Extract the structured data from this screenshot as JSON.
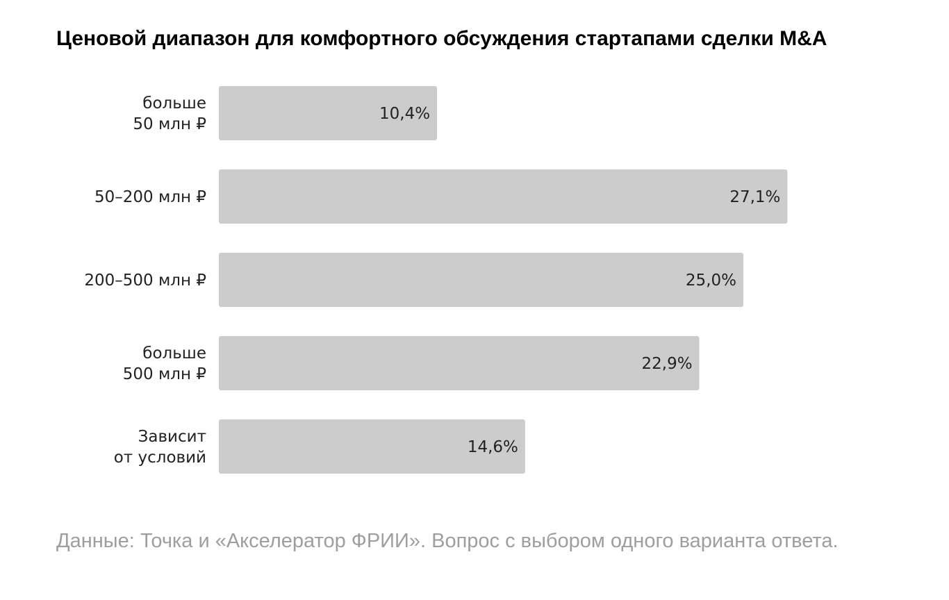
{
  "chart_data": {
    "type": "bar",
    "orientation": "horizontal",
    "title": "Ценовой диапазон для комфортного обсуждения стартапами сделки M&A",
    "categories": [
      [
        "больше",
        "50 млн ₽"
      ],
      [
        "50–200 млн ₽"
      ],
      [
        "200–500 млн ₽"
      ],
      [
        "больше",
        "500 млн ₽"
      ],
      [
        "Зависит",
        "от условий"
      ]
    ],
    "values": [
      10.4,
      27.1,
      25.0,
      22.9,
      14.6
    ],
    "value_labels": [
      "10,4%",
      "27,1%",
      "25,0%",
      "22,9%",
      "14,6%"
    ],
    "xlabel": "",
    "ylabel": "",
    "grid": false,
    "legend": "none",
    "bar_color": "#cccccc"
  },
  "source": "Данные: Точка и «Акселератор ФРИИ». Вопрос с выбором одного варианта ответа."
}
